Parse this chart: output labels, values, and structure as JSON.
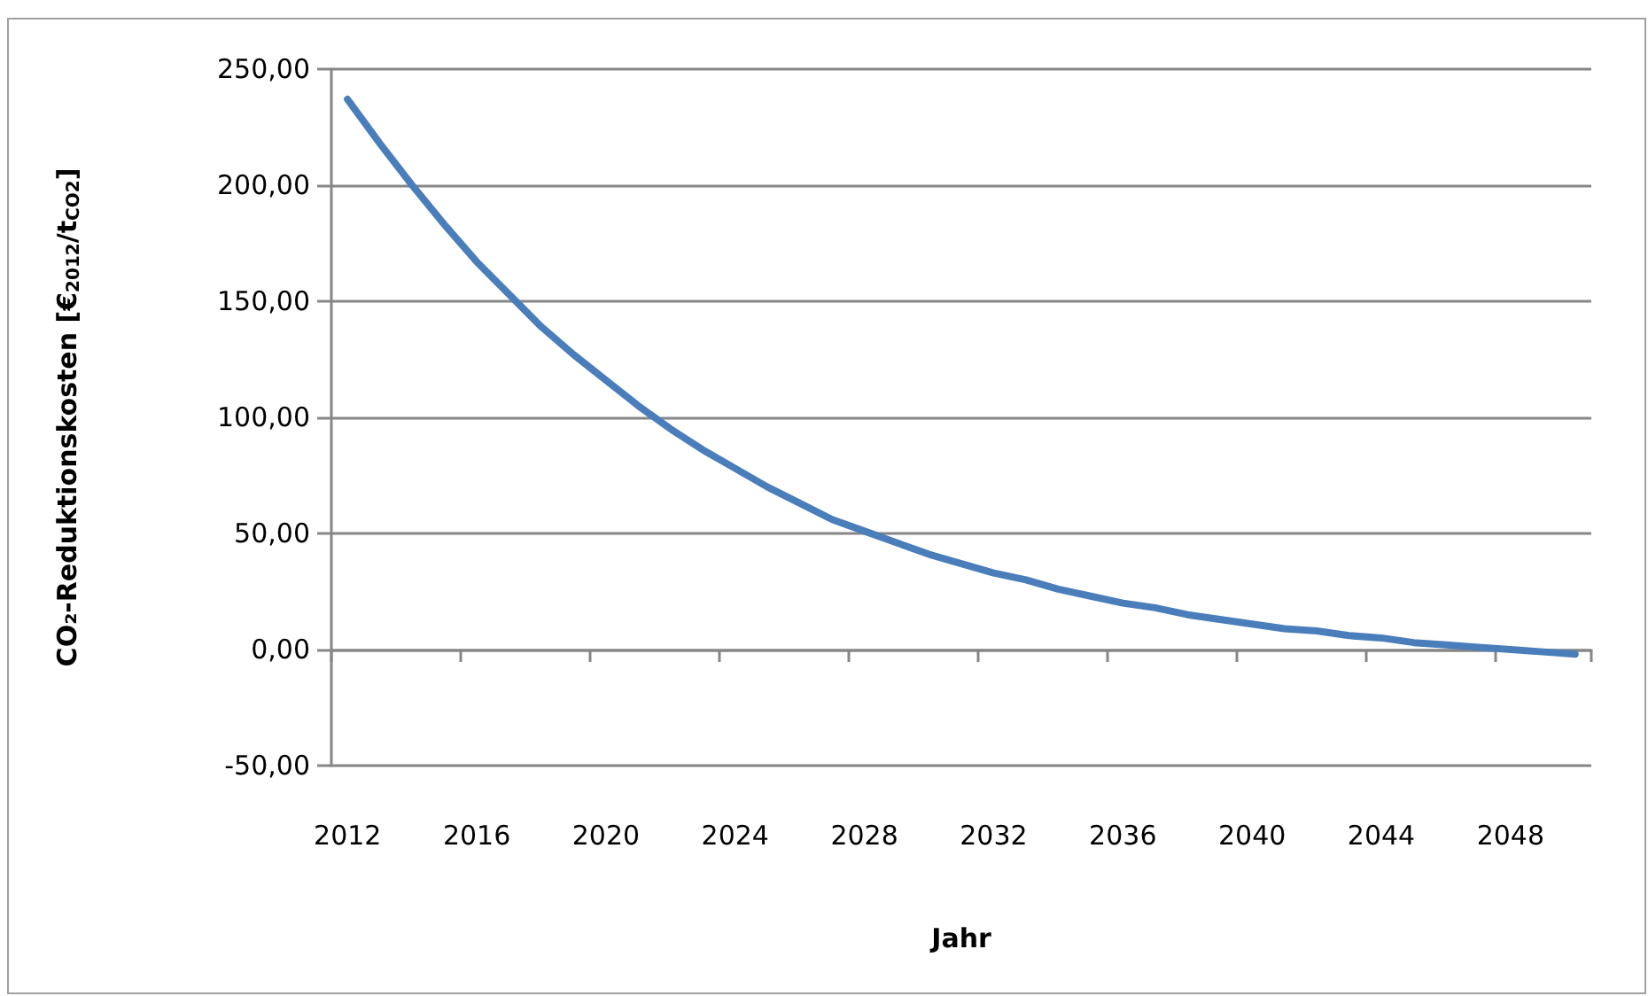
{
  "chart_data": {
    "type": "line",
    "xlabel": "Jahr",
    "ylabel": "CO₂-Reduktionskosten [€$_{2012}$/t$_{CO2}$]",
    "categories": [
      "2012",
      null,
      null,
      null,
      "2016",
      null,
      null,
      null,
      "2020",
      null,
      null,
      null,
      "2024",
      null,
      null,
      null,
      "2028",
      null,
      null,
      null,
      "2032",
      null,
      null,
      null,
      "2036",
      null,
      null,
      null,
      "2040",
      null,
      null,
      null,
      "2044",
      null,
      null,
      null,
      "2048",
      null,
      null
    ],
    "series": [
      {
        "color": "#4a7ebb",
        "values": [
          237,
          218,
          200,
          183,
          167,
          153,
          139,
          127,
          116,
          105,
          95,
          86,
          78,
          70,
          63,
          56,
          51,
          46,
          41,
          37,
          33,
          30,
          26,
          23,
          20,
          18,
          15,
          13,
          11,
          9,
          8,
          6,
          5,
          3,
          2,
          1,
          0,
          -1,
          -2
        ]
      }
    ],
    "ylim": [
      -50,
      250
    ],
    "yticks": [
      {
        "value": -50,
        "label": "-50,00"
      },
      {
        "value": 0,
        "label": "0,00"
      },
      {
        "value": 50,
        "label": "50,00"
      },
      {
        "value": 100,
        "label": "100,00"
      },
      {
        "value": 150,
        "label": "150,00"
      },
      {
        "value": 200,
        "label": "200,00"
      },
      {
        "value": 250,
        "label": "250,00"
      }
    ],
    "grid": "y",
    "marker": "none"
  }
}
